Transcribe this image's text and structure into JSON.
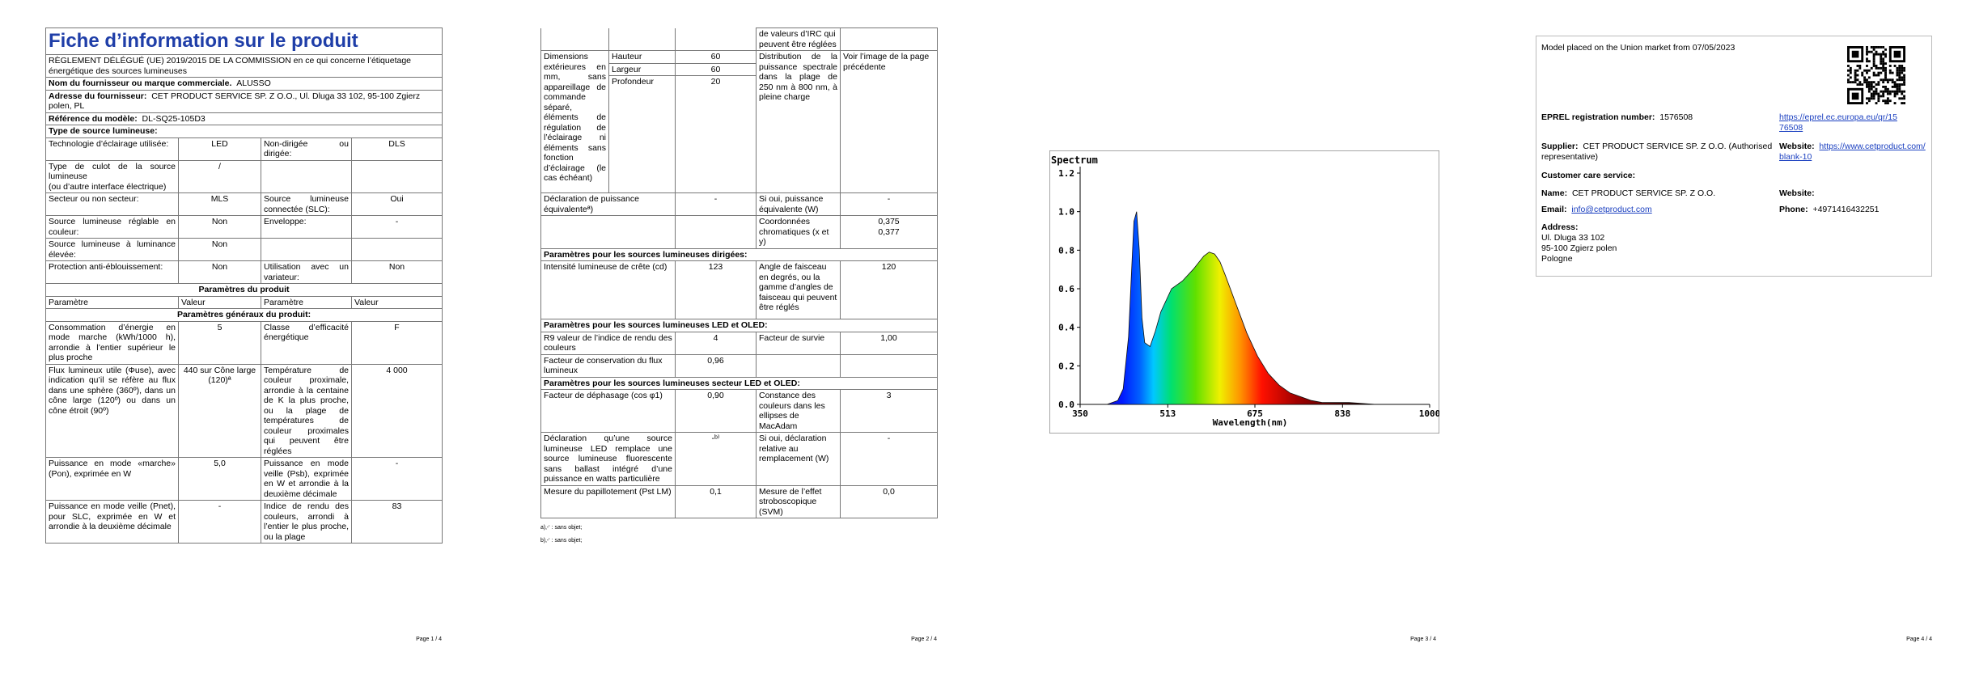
{
  "page1": {
    "title": "Fiche d’information sur le produit",
    "regulation": "RÈGLEMENT DÉLÉGUÉ (UE) 2019/2015 DE LA COMMISSION en ce qui concerne l’étiquetage énergétique des sources lumineuses",
    "supplier_name": {
      "label": "Nom du fournisseur ou marque commerciale.",
      "value": "ALUSSO"
    },
    "supplier_address": {
      "label": "Adresse du fournisseur:",
      "value": "CET PRODUCT SERVICE SP. Z O.O., Ul. Dluga 33 102, 95-100 Zgierz polen, PL"
    },
    "model_ref": {
      "label": "Référence du modèle:",
      "value": "DL-SQ25-105D3"
    },
    "light_type_header": "Type de source lumineuse:",
    "type_rows": [
      [
        "Technologie d’éclairage utilisée:",
        "LED",
        "Non-dirigée ou dirigée:",
        "DLS"
      ],
      [
        "Type de culot de la source lumineuse\n(ou d’autre interface électrique)",
        "/",
        "",
        ""
      ],
      [
        "Secteur ou non secteur:",
        "MLS",
        "Source lumineuse connectée (SLC):",
        "Oui"
      ],
      [
        "Source lumineuse réglable en couleur:",
        "Non",
        "Enveloppe:",
        "-"
      ],
      [
        "Source lumineuse à luminance élevée:",
        "Non",
        "",
        ""
      ],
      [
        "Protection anti-éblouissement:",
        "Non",
        "Utilisation avec un variateur:",
        "Non"
      ]
    ],
    "params_header": "Paramètres du produit",
    "col_headers": [
      "Paramètre",
      "Valeur",
      "Paramètre",
      "Valeur"
    ],
    "general_header": "Paramètres généraux du produit:",
    "general_rows": [
      [
        "Consommation d’énergie en mode marche (kWh/1000 h), arrondie à l’entier supérieur le plus proche",
        "5",
        "Classe d’efficacité énergétique",
        "F"
      ],
      [
        "Flux lumineux utile (Φuse), avec indication qu’il se réfère au flux dans une sphère (360º), dans un cône large (120º) ou dans un cône étroit (90º)",
        "440 sur Cône large (120)ª",
        "Température de couleur proximale, arrondie à la centaine de K la plus proche, ou la plage de températures de couleur proximales qui peuvent être réglées",
        "4 000"
      ],
      [
        "Puissance en mode «marche» (Pon), exprimée en W",
        "5,0",
        "Puissance en mode veille (Psb), exprimée en W et arrondie à la deuxième décimale",
        "-"
      ],
      [
        "Puissance en mode veille (Pnet), pour SLC, exprimée en W et arrondie à la deuxième décimale",
        "-",
        "Indice de rendu des couleurs, arrondi à l’entier le plus proche, ou la plage",
        "83"
      ]
    ],
    "page_number": "Page 1 / 4"
  },
  "page2": {
    "top_cont": "de valeurs d’IRC qui peuvent être réglées",
    "dims_label": "Dimensions extérieures en mm, sans appareillage de commande séparé, éléments de régulation de l’éclairage ni éléments sans fonction d’éclairage (le cas échéant)",
    "dims": [
      [
        "Hauteur",
        "60"
      ],
      [
        "Largeur",
        "60"
      ],
      [
        "Profondeur",
        "20"
      ]
    ],
    "spectral_label": "Distribution de la puissance spectrale dans la plage de 250 nm à 800 nm, à pleine charge",
    "spectral_value": "Voir l’image de la page précédente",
    "equiv_label": "Déclaration de puissance équivalenteª)",
    "equiv_value": "-",
    "equiv_w_label": "Si oui, puissance équivalente (W)",
    "equiv_w_value": "-",
    "chroma_label": "Coordonnées chromatiques (x et y)",
    "chroma_value": "0,375\n0,377",
    "directed_header": "Paramètres pour les sources lumineuses dirigées:",
    "peak_label": "Intensité lumineuse de crête (cd)",
    "peak_value": "123",
    "beam_label": "Angle de faisceau en degrés, ou la gamme d’angles de faisceau qui peuvent être réglés",
    "beam_value": "120",
    "led_header": "Paramètres pour les sources lumineuses LED et OLED:",
    "r9_label": "R9 valeur de l’indice de rendu des couleurs",
    "r9_value": "4",
    "survival_label": "Facteur de survie",
    "survival_value": "1,00",
    "maint_label": "Facteur de conservation du flux lumineux",
    "maint_value": "0,96",
    "mains_header": "Paramètres pour les sources lumineuses secteur LED et OLED:",
    "phase_label": "Facteur de déphasage (cos φ1)",
    "phase_value": "0,90",
    "macadam_label": "Constance des couleurs dans les ellipses de MacAdam",
    "macadam_value": "3",
    "replace_label": "Déclaration qu’une source lumineuse LED remplace une source lumineuse fluorescente sans ballast intégré d’une puissance en watts particulière",
    "replace_value": "-ᵇ⁾",
    "replace_w_label": "Si oui, déclaration relative au remplacement (W)",
    "replace_w_value": "-",
    "flicker_label": "Mesure du papillotement (Pst LM)",
    "flicker_value": "0,1",
    "strobo_label": "Mesure de l’effet stroboscopique (SVM)",
    "strobo_value": "0,0",
    "notes": [
      "a)‚-‘ : sans objet;",
      "b)‚-‘ : sans objet;"
    ],
    "page_number": "Page 2 / 4"
  },
  "page3": {
    "chart_data": {
      "type": "area",
      "title": "Spectrum",
      "xlabel": "Wavelength(nm)",
      "ylabel": "",
      "x_ticks": [
        350,
        513,
        675,
        838,
        1000
      ],
      "y_ticks": [
        "0.0",
        "0.2",
        "0.4",
        "0.6",
        "0.8",
        "1.0",
        "1.2"
      ],
      "xlim": [
        350,
        1000
      ],
      "ylim": [
        0,
        1.2
      ],
      "series": [
        {
          "x": [
            350,
            400,
            420,
            430,
            440,
            445,
            450,
            455,
            460,
            465,
            470,
            480,
            490,
            500,
            520,
            540,
            560,
            580,
            590,
            600,
            610,
            620,
            640,
            660,
            680,
            700,
            720,
            740,
            760,
            780,
            800,
            850,
            900,
            1000
          ],
          "values": [
            0.0,
            0.0,
            0.02,
            0.08,
            0.35,
            0.65,
            0.95,
            1.0,
            0.8,
            0.45,
            0.32,
            0.3,
            0.38,
            0.48,
            0.6,
            0.64,
            0.7,
            0.77,
            0.79,
            0.78,
            0.74,
            0.67,
            0.52,
            0.37,
            0.25,
            0.16,
            0.1,
            0.06,
            0.04,
            0.02,
            0.01,
            0.01,
            0.0,
            0.0
          ]
        }
      ]
    },
    "page_number": "Page 3 / 4"
  },
  "page4": {
    "placed": "Model placed on the Union market from 07/05/2023",
    "eprel_label": "EPREL registration number:",
    "eprel_value": "1576508",
    "eprel_link": "https://eprel.ec.europa.eu/qr/1576508",
    "supplier_label": "Supplier:",
    "supplier_value": "CET PRODUCT SERVICE SP. Z O.O. (Authorised representative)",
    "website_label": "Website:",
    "website_value": "https://www.cetproduct.com/blank-10",
    "care_label": "Customer care service:",
    "name_label": "Name:",
    "name_value": "CET PRODUCT SERVICE SP. Z O.O.",
    "care_website_label": "Website:",
    "email_label": "Email:",
    "email_value": "info@cetproduct.com",
    "phone_label": "Phone:",
    "phone_value": "+4971416432251",
    "address_label": "Address:",
    "address_lines": [
      "Ul. Dluga 33 102",
      "95-100 Zgierz polen",
      "Pologne"
    ],
    "page_number": "Page 4 / 4"
  }
}
